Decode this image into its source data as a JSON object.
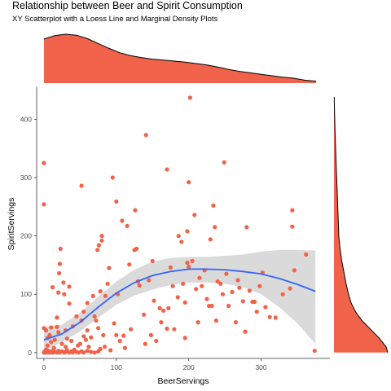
{
  "chart_data": {
    "type": "scatter",
    "title": "Relationship between Beer and Spirit Consumption",
    "subtitle": "XY Scatterplot with a Loess Line and Marginal Density Plots",
    "xlabel": "BeerServings",
    "ylabel": "SpiritServings",
    "xlim": [
      -10,
      395
    ],
    "ylim": [
      -10,
      455
    ],
    "x_ticks": [
      0,
      100,
      200,
      300
    ],
    "y_ticks": [
      0,
      100,
      200,
      300,
      400
    ],
    "grid": false,
    "colors": {
      "points": "#f0634a",
      "density_fill": "#f0634a",
      "density_outline": "#000000",
      "loess_line": "#3366ff",
      "ci_band": "#d4d4d4",
      "axis": "#333333"
    },
    "points": [
      {
        "x": 0,
        "y": 0
      },
      {
        "x": 1,
        "y": 2
      },
      {
        "x": 2,
        "y": 0
      },
      {
        "x": 3,
        "y": 5
      },
      {
        "x": 5,
        "y": 0
      },
      {
        "x": 6,
        "y": 3
      },
      {
        "x": 8,
        "y": 0
      },
      {
        "x": 10,
        "y": 2
      },
      {
        "x": 12,
        "y": 0
      },
      {
        "x": 13,
        "y": 4
      },
      {
        "x": 15,
        "y": 1
      },
      {
        "x": 18,
        "y": 0
      },
      {
        "x": 20,
        "y": 3
      },
      {
        "x": 22,
        "y": 0
      },
      {
        "x": 25,
        "y": 2
      },
      {
        "x": 28,
        "y": 0
      },
      {
        "x": 30,
        "y": 1
      },
      {
        "x": 32,
        "y": 4
      },
      {
        "x": 35,
        "y": 0
      },
      {
        "x": 38,
        "y": 2
      },
      {
        "x": 40,
        "y": 0
      },
      {
        "x": 42,
        "y": 3
      },
      {
        "x": 45,
        "y": 1
      },
      {
        "x": 48,
        "y": 0
      },
      {
        "x": 52,
        "y": 2
      },
      {
        "x": 55,
        "y": 0
      },
      {
        "x": 60,
        "y": 3
      },
      {
        "x": 65,
        "y": 1
      },
      {
        "x": 70,
        "y": 0
      },
      {
        "x": 75,
        "y": 2
      },
      {
        "x": 0,
        "y": 325
      },
      {
        "x": 0,
        "y": 254
      },
      {
        "x": 0,
        "y": 42
      },
      {
        "x": 3,
        "y": 38
      },
      {
        "x": 5,
        "y": 25
      },
      {
        "x": 5,
        "y": 12
      },
      {
        "x": 8,
        "y": 30
      },
      {
        "x": 10,
        "y": 43
      },
      {
        "x": 10,
        "y": 18
      },
      {
        "x": 12,
        "y": 112
      },
      {
        "x": 14,
        "y": 8
      },
      {
        "x": 15,
        "y": 22
      },
      {
        "x": 18,
        "y": 44
      },
      {
        "x": 18,
        "y": 60
      },
      {
        "x": 20,
        "y": 103
      },
      {
        "x": 20,
        "y": 35
      },
      {
        "x": 21,
        "y": 136
      },
      {
        "x": 22,
        "y": 152
      },
      {
        "x": 23,
        "y": 178
      },
      {
        "x": 25,
        "y": 15
      },
      {
        "x": 27,
        "y": 120
      },
      {
        "x": 28,
        "y": 100
      },
      {
        "x": 30,
        "y": 38
      },
      {
        "x": 30,
        "y": 10
      },
      {
        "x": 32,
        "y": 24
      },
      {
        "x": 35,
        "y": 113
      },
      {
        "x": 35,
        "y": 84
      },
      {
        "x": 38,
        "y": 20
      },
      {
        "x": 40,
        "y": 45
      },
      {
        "x": 42,
        "y": 5
      },
      {
        "x": 45,
        "y": 62
      },
      {
        "x": 47,
        "y": 12
      },
      {
        "x": 50,
        "y": 15
      },
      {
        "x": 52,
        "y": 286
      },
      {
        "x": 52,
        "y": 55
      },
      {
        "x": 55,
        "y": 70
      },
      {
        "x": 55,
        "y": 28
      },
      {
        "x": 58,
        "y": 22
      },
      {
        "x": 60,
        "y": 85
      },
      {
        "x": 60,
        "y": 38
      },
      {
        "x": 62,
        "y": 10
      },
      {
        "x": 65,
        "y": 26
      },
      {
        "x": 68,
        "y": 97
      },
      {
        "x": 70,
        "y": 62
      },
      {
        "x": 72,
        "y": 55
      },
      {
        "x": 74,
        "y": 176
      },
      {
        "x": 75,
        "y": 42
      },
      {
        "x": 76,
        "y": 184
      },
      {
        "x": 78,
        "y": 105
      },
      {
        "x": 78,
        "y": 6
      },
      {
        "x": 80,
        "y": 200
      },
      {
        "x": 80,
        "y": 192
      },
      {
        "x": 82,
        "y": 30
      },
      {
        "x": 84,
        "y": 10
      },
      {
        "x": 85,
        "y": 97
      },
      {
        "x": 88,
        "y": 118
      },
      {
        "x": 90,
        "y": 145
      },
      {
        "x": 92,
        "y": 4
      },
      {
        "x": 95,
        "y": 300
      },
      {
        "x": 97,
        "y": 50
      },
      {
        "x": 100,
        "y": 259
      },
      {
        "x": 100,
        "y": 30
      },
      {
        "x": 102,
        "y": 100
      },
      {
        "x": 105,
        "y": 20
      },
      {
        "x": 108,
        "y": 226
      },
      {
        "x": 110,
        "y": 29
      },
      {
        "x": 112,
        "y": 8
      },
      {
        "x": 115,
        "y": 217
      },
      {
        "x": 118,
        "y": 151
      },
      {
        "x": 120,
        "y": 40
      },
      {
        "x": 125,
        "y": 176
      },
      {
        "x": 126,
        "y": 244
      },
      {
        "x": 128,
        "y": 178
      },
      {
        "x": 130,
        "y": 122
      },
      {
        "x": 132,
        "y": 115
      },
      {
        "x": 138,
        "y": 65
      },
      {
        "x": 140,
        "y": 15
      },
      {
        "x": 141,
        "y": 373
      },
      {
        "x": 145,
        "y": 124
      },
      {
        "x": 148,
        "y": 30
      },
      {
        "x": 150,
        "y": 157
      },
      {
        "x": 152,
        "y": 89
      },
      {
        "x": 155,
        "y": 20
      },
      {
        "x": 160,
        "y": 76
      },
      {
        "x": 162,
        "y": 52
      },
      {
        "x": 165,
        "y": 72
      },
      {
        "x": 170,
        "y": 314
      },
      {
        "x": 170,
        "y": 41
      },
      {
        "x": 172,
        "y": 76
      },
      {
        "x": 175,
        "y": 146
      },
      {
        "x": 178,
        "y": 114
      },
      {
        "x": 180,
        "y": 40
      },
      {
        "x": 185,
        "y": 95
      },
      {
        "x": 186,
        "y": 200
      },
      {
        "x": 190,
        "y": 190
      },
      {
        "x": 192,
        "y": 118
      },
      {
        "x": 195,
        "y": 86
      },
      {
        "x": 195,
        "y": 25
      },
      {
        "x": 198,
        "y": 208
      },
      {
        "x": 198,
        "y": 154
      },
      {
        "x": 200,
        "y": 292
      },
      {
        "x": 200,
        "y": 147
      },
      {
        "x": 202,
        "y": 437
      },
      {
        "x": 205,
        "y": 157
      },
      {
        "x": 208,
        "y": 236
      },
      {
        "x": 210,
        "y": 109
      },
      {
        "x": 213,
        "y": 52
      },
      {
        "x": 215,
        "y": 128
      },
      {
        "x": 218,
        "y": 114
      },
      {
        "x": 222,
        "y": 141
      },
      {
        "x": 225,
        "y": 92
      },
      {
        "x": 228,
        "y": 80
      },
      {
        "x": 230,
        "y": 194
      },
      {
        "x": 232,
        "y": 80
      },
      {
        "x": 234,
        "y": 252
      },
      {
        "x": 236,
        "y": 215
      },
      {
        "x": 238,
        "y": 55
      },
      {
        "x": 240,
        "y": 122
      },
      {
        "x": 244,
        "y": 118
      },
      {
        "x": 247,
        "y": 100
      },
      {
        "x": 249,
        "y": 326
      },
      {
        "x": 252,
        "y": 135
      },
      {
        "x": 255,
        "y": 80
      },
      {
        "x": 260,
        "y": 104
      },
      {
        "x": 265,
        "y": 52
      },
      {
        "x": 268,
        "y": 124
      },
      {
        "x": 270,
        "y": 111
      },
      {
        "x": 275,
        "y": 88
      },
      {
        "x": 278,
        "y": 36
      },
      {
        "x": 280,
        "y": 215
      },
      {
        "x": 284,
        "y": 106
      },
      {
        "x": 288,
        "y": 87
      },
      {
        "x": 291,
        "y": 87
      },
      {
        "x": 294,
        "y": 70
      },
      {
        "x": 298,
        "y": 114
      },
      {
        "x": 302,
        "y": 137
      },
      {
        "x": 306,
        "y": 78
      },
      {
        "x": 312,
        "y": 61
      },
      {
        "x": 320,
        "y": 60
      },
      {
        "x": 330,
        "y": 100
      },
      {
        "x": 340,
        "y": 110
      },
      {
        "x": 343,
        "y": 244
      },
      {
        "x": 343,
        "y": 216
      },
      {
        "x": 346,
        "y": 141
      },
      {
        "x": 362,
        "y": 168
      },
      {
        "x": 374,
        "y": 3
      }
    ],
    "loess": [
      {
        "x": 0,
        "y": 22,
        "lo": 2,
        "hi": 44
      },
      {
        "x": 25,
        "y": 32,
        "lo": 18,
        "hi": 48
      },
      {
        "x": 50,
        "y": 52,
        "lo": 36,
        "hi": 68
      },
      {
        "x": 75,
        "y": 78,
        "lo": 60,
        "hi": 96
      },
      {
        "x": 100,
        "y": 102,
        "lo": 82,
        "hi": 122
      },
      {
        "x": 125,
        "y": 120,
        "lo": 98,
        "hi": 142
      },
      {
        "x": 150,
        "y": 132,
        "lo": 108,
        "hi": 156
      },
      {
        "x": 175,
        "y": 139,
        "lo": 116,
        "hi": 162
      },
      {
        "x": 200,
        "y": 143,
        "lo": 120,
        "hi": 164
      },
      {
        "x": 225,
        "y": 143,
        "lo": 120,
        "hi": 164
      },
      {
        "x": 250,
        "y": 142,
        "lo": 118,
        "hi": 166
      },
      {
        "x": 275,
        "y": 139,
        "lo": 112,
        "hi": 168
      },
      {
        "x": 300,
        "y": 135,
        "lo": 100,
        "hi": 173
      },
      {
        "x": 325,
        "y": 127,
        "lo": 78,
        "hi": 176
      },
      {
        "x": 350,
        "y": 117,
        "lo": 50,
        "hi": 176
      },
      {
        "x": 375,
        "y": 105,
        "lo": 15,
        "hi": 175
      }
    ],
    "density_x": [
      {
        "v": 0,
        "d": 0.9
      },
      {
        "v": 15,
        "d": 0.97
      },
      {
        "v": 30,
        "d": 1.0
      },
      {
        "v": 45,
        "d": 0.98
      },
      {
        "v": 60,
        "d": 0.91
      },
      {
        "v": 75,
        "d": 0.81
      },
      {
        "v": 90,
        "d": 0.71
      },
      {
        "v": 105,
        "d": 0.62
      },
      {
        "v": 120,
        "d": 0.56
      },
      {
        "v": 135,
        "d": 0.52
      },
      {
        "v": 150,
        "d": 0.49
      },
      {
        "v": 165,
        "d": 0.47
      },
      {
        "v": 180,
        "d": 0.45
      },
      {
        "v": 195,
        "d": 0.43
      },
      {
        "v": 210,
        "d": 0.4
      },
      {
        "v": 225,
        "d": 0.37
      },
      {
        "v": 240,
        "d": 0.33
      },
      {
        "v": 255,
        "d": 0.28
      },
      {
        "v": 270,
        "d": 0.24
      },
      {
        "v": 285,
        "d": 0.21
      },
      {
        "v": 300,
        "d": 0.18
      },
      {
        "v": 315,
        "d": 0.15
      },
      {
        "v": 330,
        "d": 0.12
      },
      {
        "v": 345,
        "d": 0.1
      },
      {
        "v": 360,
        "d": 0.06
      },
      {
        "v": 376,
        "d": 0.04
      }
    ],
    "density_y": [
      {
        "v": 0,
        "d": 1.0
      },
      {
        "v": 10,
        "d": 0.97
      },
      {
        "v": 25,
        "d": 0.84
      },
      {
        "v": 40,
        "d": 0.68
      },
      {
        "v": 55,
        "d": 0.52
      },
      {
        "v": 70,
        "d": 0.4
      },
      {
        "v": 85,
        "d": 0.32
      },
      {
        "v": 100,
        "d": 0.27
      },
      {
        "v": 120,
        "d": 0.22
      },
      {
        "v": 140,
        "d": 0.18
      },
      {
        "v": 160,
        "d": 0.14
      },
      {
        "v": 180,
        "d": 0.11
      },
      {
        "v": 200,
        "d": 0.09
      },
      {
        "v": 225,
        "d": 0.08
      },
      {
        "v": 250,
        "d": 0.07
      },
      {
        "v": 275,
        "d": 0.06
      },
      {
        "v": 300,
        "d": 0.05
      },
      {
        "v": 325,
        "d": 0.04
      },
      {
        "v": 350,
        "d": 0.03
      },
      {
        "v": 380,
        "d": 0.02
      },
      {
        "v": 410,
        "d": 0.01
      },
      {
        "v": 438,
        "d": 0.005
      }
    ]
  }
}
